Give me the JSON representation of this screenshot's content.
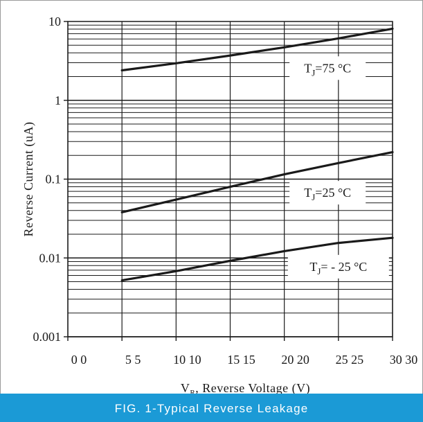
{
  "chart_data": {
    "type": "line",
    "x_scale": "linear",
    "y_scale": "log",
    "xlim": [
      0,
      30
    ],
    "ylim": [
      0.001,
      10
    ],
    "grid": true,
    "xlabel_main": "V",
    "xlabel_sub": "R",
    "xlabel_rest": ", Reverse Voltage (V)",
    "ylabel": "Reverse Current (uA)",
    "x_ticks": [
      {
        "v": 0,
        "text": "0  0"
      },
      {
        "v": 5,
        "text": "5  5"
      },
      {
        "v": 10,
        "text": "10 10"
      },
      {
        "v": 15,
        "text": "15 15"
      },
      {
        "v": 20,
        "text": "20 20"
      },
      {
        "v": 25,
        "text": "25 25"
      },
      {
        "v": 30,
        "text": "30 30"
      }
    ],
    "y_ticks": [
      {
        "v": 10,
        "text": "10"
      },
      {
        "v": 1,
        "text": "1"
      },
      {
        "v": 0.1,
        "text": "0.1"
      },
      {
        "v": 0.01,
        "text": "0.01"
      },
      {
        "v": 0.001,
        "text": "0.001"
      }
    ],
    "series": [
      {
        "label_main": "T",
        "label_sub": "J",
        "label_rest": "=75 °C",
        "x": [
          5,
          10,
          15,
          20,
          25,
          30
        ],
        "values": [
          2.4,
          2.95,
          3.7,
          4.7,
          6.1,
          8.1
        ]
      },
      {
        "label_main": "T",
        "label_sub": "J",
        "label_rest": "=25 °C",
        "x": [
          5,
          10,
          15,
          20,
          25,
          30
        ],
        "values": [
          0.038,
          0.055,
          0.08,
          0.115,
          0.16,
          0.22
        ]
      },
      {
        "label_main": "T",
        "label_sub": "J",
        "label_rest": "= - 25 °C",
        "x": [
          5,
          10,
          15,
          20,
          25,
          30
        ],
        "values": [
          0.0052,
          0.0068,
          0.0092,
          0.0122,
          0.0155,
          0.018
        ]
      }
    ]
  },
  "caption": "FIG. 1-Typical Reverse Leakage"
}
